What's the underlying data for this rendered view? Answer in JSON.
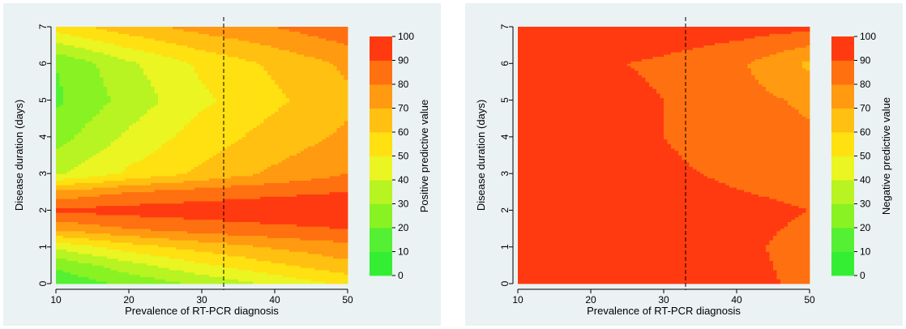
{
  "colors": {
    "panel_bg": "#eaf2f3",
    "dashed_line": "#000000",
    "scale": [
      "#33ee33",
      "#55f033",
      "#88f222",
      "#b8f322",
      "#eaf522",
      "#ffe011",
      "#ffc011",
      "#ff9a11",
      "#ff7010",
      "#ff3a10"
    ]
  },
  "chart_data": [
    {
      "type": "heatmap",
      "title": "",
      "xlabel": "Prevalence of RT-PCR diagnosis",
      "ylabel": "Disease duration (days)",
      "legend_title": "Positive predictive value",
      "legend_position": "right",
      "grid": false,
      "xlim": [
        10,
        50
      ],
      "ylim": [
        0,
        7
      ],
      "x_ticks": [
        "10",
        "20",
        "30",
        "40",
        "50"
      ],
      "y_ticks": [
        "0",
        "1",
        "2",
        "3",
        "4",
        "5",
        "6",
        "7"
      ],
      "legend_ticks": [
        "0",
        "10",
        "20",
        "30",
        "40",
        "50",
        "60",
        "70",
        "80",
        "90",
        "100"
      ],
      "reference_line_x": 33,
      "x": [
        10,
        20,
        30,
        40,
        50
      ],
      "y": [
        0,
        0.5,
        1,
        1.5,
        2,
        2.5,
        3,
        4,
        5,
        6,
        7
      ],
      "z": [
        [
          12,
          22,
          32,
          42,
          52
        ],
        [
          22,
          36,
          48,
          58,
          67
        ],
        [
          42,
          55,
          64,
          71,
          77
        ],
        [
          72,
          80,
          85,
          88,
          90
        ],
        [
          92,
          94,
          95,
          96,
          97
        ],
        [
          72,
          80,
          85,
          88,
          90
        ],
        [
          38,
          52,
          62,
          72,
          80
        ],
        [
          26,
          42,
          55,
          64,
          72
        ],
        [
          18,
          34,
          48,
          58,
          68
        ],
        [
          20,
          38,
          52,
          62,
          72
        ],
        [
          55,
          66,
          74,
          80,
          88
        ]
      ]
    },
    {
      "type": "heatmap",
      "title": "",
      "xlabel": "Prevalence of RT-PCR diagnosis",
      "ylabel": "Disease duration (days)",
      "legend_title": "Negative predictive value",
      "legend_position": "right",
      "grid": false,
      "xlim": [
        10,
        50
      ],
      "ylim": [
        0,
        7
      ],
      "x_ticks": [
        "10",
        "20",
        "30",
        "40",
        "50"
      ],
      "y_ticks": [
        "0",
        "1",
        "2",
        "3",
        "4",
        "5",
        "6",
        "7"
      ],
      "legend_ticks": [
        "0",
        "10",
        "20",
        "30",
        "40",
        "50",
        "60",
        "70",
        "80",
        "90",
        "100"
      ],
      "reference_line_x": 33,
      "x": [
        10,
        20,
        30,
        40,
        50
      ],
      "y": [
        0,
        1,
        2,
        3,
        4,
        5,
        6,
        7
      ],
      "z": [
        [
          99,
          98,
          96,
          93,
          88
        ],
        [
          99,
          98,
          96,
          92,
          87
        ],
        [
          99,
          98,
          96,
          93,
          90
        ],
        [
          99,
          98,
          92,
          88,
          85
        ],
        [
          98,
          96,
          90,
          85,
          82
        ],
        [
          98,
          95,
          90,
          84,
          78
        ],
        [
          96,
          92,
          88,
          82,
          68
        ],
        [
          99,
          98,
          97,
          95,
          93
        ]
      ]
    }
  ]
}
